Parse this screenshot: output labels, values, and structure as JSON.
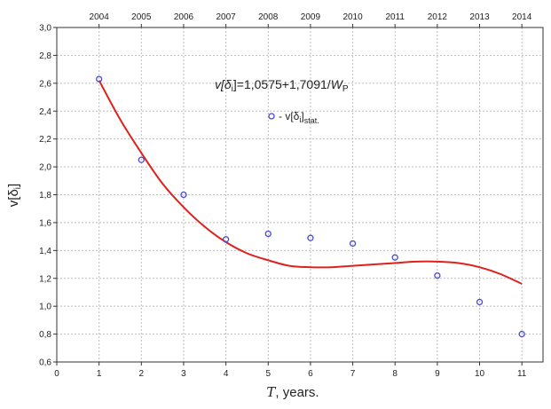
{
  "chart_data": {
    "type": "scatter",
    "x_ticks": [
      0,
      1,
      2,
      3,
      4,
      5,
      6,
      7,
      8,
      9,
      10,
      11
    ],
    "top_ticks": [
      "2004",
      "2005",
      "2006",
      "2007",
      "2008",
      "2009",
      "2010",
      "2011",
      "2012",
      "2013",
      "2014"
    ],
    "y_ticks": [
      "0,6",
      "0,8",
      "1,0",
      "1,2",
      "1,4",
      "1,6",
      "1,8",
      "2,0",
      "2,2",
      "2,4",
      "2,6",
      "2,8",
      "3,0"
    ],
    "xlim": [
      0,
      11.5
    ],
    "ylim": [
      0.6,
      3.0
    ],
    "grid": true,
    "xlabel_symbol": "T",
    "xlabel_text": ", years.",
    "ylabel": {
      "base": "v[δ",
      "sub": "i",
      "close": "]"
    },
    "annotation": {
      "lhs": "v[δ",
      "lhs_sub": "i",
      "middle": "]=1,0575+1,7091/",
      "var": "W",
      "var_sub": "P"
    },
    "series": [
      {
        "legend": {
          "prefix": "- v[δ",
          "sub1": "i",
          "close": "]",
          "sub2": "stat."
        },
        "marker_color": "#4a4ad6",
        "x": [
          1,
          2,
          3,
          4,
          5,
          6,
          7,
          8,
          9,
          10,
          11
        ],
        "y": [
          2.63,
          2.05,
          1.8,
          1.48,
          1.52,
          1.49,
          1.45,
          1.35,
          1.22,
          1.03,
          0.8
        ]
      }
    ],
    "trend": {
      "color": "#e0201c",
      "x": [
        1,
        1.5,
        2,
        2.5,
        3,
        3.5,
        4,
        4.5,
        5,
        5.5,
        6,
        6.5,
        7,
        7.5,
        8,
        8.5,
        9,
        9.5,
        10,
        10.5,
        11
      ],
      "y": [
        2.62,
        2.34,
        2.1,
        1.88,
        1.71,
        1.57,
        1.46,
        1.38,
        1.33,
        1.29,
        1.28,
        1.28,
        1.29,
        1.3,
        1.31,
        1.32,
        1.32,
        1.31,
        1.28,
        1.23,
        1.16
      ]
    }
  }
}
